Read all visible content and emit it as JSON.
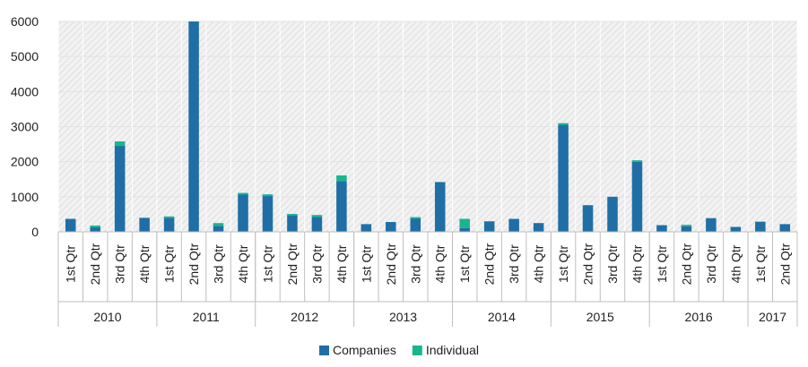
{
  "chart_data": {
    "type": "bar",
    "stacked": true,
    "categories": [
      "1st Qtr",
      "2nd Qtr",
      "3rd Qtr",
      "4th Qtr",
      "1st Qtr",
      "2nd Qtr",
      "3rd Qtr",
      "4th Qtr",
      "1st Qtr",
      "2nd Qtr",
      "3rd Qtr",
      "4th Qtr",
      "1st Qtr",
      "2nd Qtr",
      "3rd Qtr",
      "4th Qtr",
      "1st Qtr",
      "2nd Qtr",
      "3rd Qtr",
      "4th Qtr",
      "1st Qtr",
      "2nd Qtr",
      "3rd Qtr",
      "4th Qtr",
      "1st Qtr",
      "2nd Qtr",
      "3rd Qtr",
      "4th Qtr",
      "1st Qtr",
      "2nd Qtr"
    ],
    "groups": [
      {
        "label": "2010",
        "count": 4
      },
      {
        "label": "2011",
        "count": 4
      },
      {
        "label": "2012",
        "count": 4
      },
      {
        "label": "2013",
        "count": 4
      },
      {
        "label": "2014",
        "count": 4
      },
      {
        "label": "2015",
        "count": 4
      },
      {
        "label": "2016",
        "count": 4
      },
      {
        "label": "2017",
        "count": 2
      }
    ],
    "series": [
      {
        "name": "Companies",
        "color": "#1f6fa6",
        "values": [
          370,
          130,
          2450,
          400,
          400,
          6000,
          170,
          1060,
          1020,
          470,
          420,
          1450,
          220,
          280,
          380,
          1420,
          110,
          300,
          370,
          250,
          3050,
          760,
          1000,
          2000,
          190,
          160,
          390,
          140,
          290,
          220
        ]
      },
      {
        "name": "Individual",
        "color": "#1ab58d",
        "values": [
          0,
          50,
          130,
          0,
          40,
          0,
          80,
          50,
          50,
          40,
          60,
          160,
          0,
          0,
          40,
          0,
          260,
          0,
          0,
          0,
          50,
          0,
          0,
          40,
          0,
          40,
          0,
          0,
          0,
          0
        ]
      }
    ],
    "ylim": [
      0,
      6000
    ],
    "yticks": [
      0,
      1000,
      2000,
      3000,
      4000,
      5000,
      6000
    ],
    "xlabel": "",
    "ylabel": "",
    "title": "",
    "grid": true,
    "plot_background": "hatched",
    "legend_position": "bottom"
  }
}
